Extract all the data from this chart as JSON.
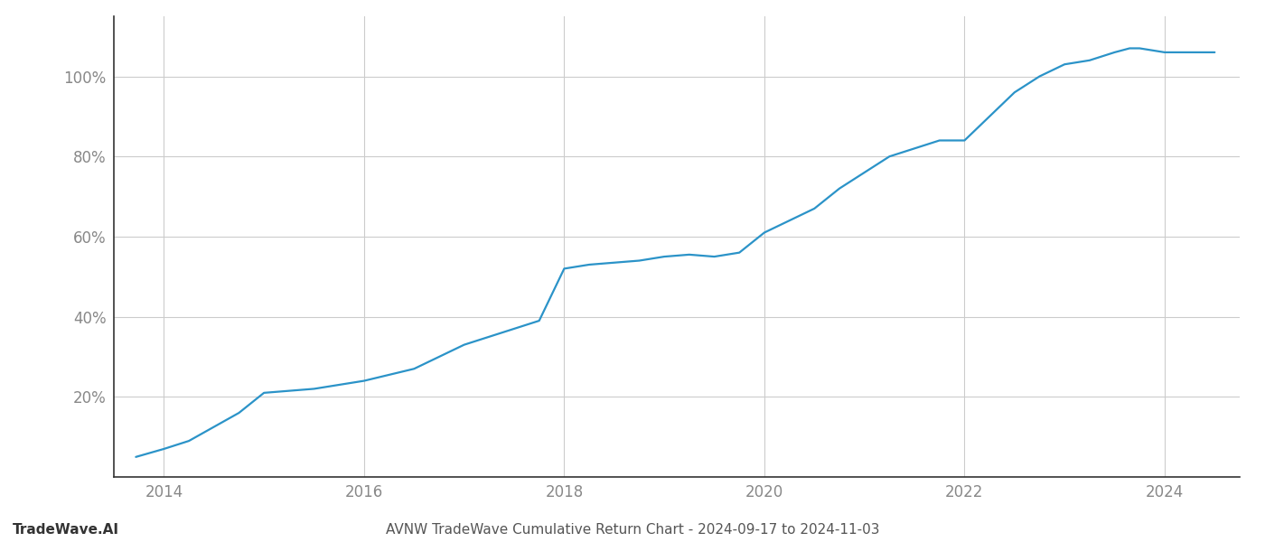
{
  "x_years": [
    2013.72,
    2014.0,
    2014.25,
    2014.75,
    2015.0,
    2015.25,
    2015.5,
    2016.0,
    2016.5,
    2017.0,
    2017.25,
    2017.5,
    2017.75,
    2018.0,
    2018.25,
    2018.5,
    2018.75,
    2019.0,
    2019.25,
    2019.5,
    2019.75,
    2020.0,
    2020.25,
    2020.5,
    2020.75,
    2021.0,
    2021.25,
    2021.5,
    2021.75,
    2022.0,
    2022.25,
    2022.5,
    2022.75,
    2023.0,
    2023.25,
    2023.5,
    2023.65,
    2023.75,
    2024.0,
    2024.3,
    2024.5
  ],
  "y_values": [
    5,
    7,
    9,
    16,
    21,
    21.5,
    22,
    24,
    27,
    33,
    35,
    37,
    39,
    52,
    53,
    53.5,
    54,
    55,
    55.5,
    55,
    56,
    61,
    64,
    67,
    72,
    76,
    80,
    82,
    84,
    84,
    90,
    96,
    100,
    103,
    104,
    106,
    107,
    107,
    106,
    106,
    106
  ],
  "line_color": "#2b93c8",
  "line_width": 1.6,
  "background_color": "#ffffff",
  "grid_color": "#cccccc",
  "title": "AVNW TradeWave Cumulative Return Chart - 2024-09-17 to 2024-11-03",
  "title_fontsize": 11,
  "title_color": "#555555",
  "watermark": "TradeWave.AI",
  "watermark_color": "#333333",
  "watermark_fontsize": 11,
  "xtick_labels": [
    "2014",
    "2016",
    "2018",
    "2020",
    "2022",
    "2024"
  ],
  "xtick_values": [
    2014,
    2016,
    2018,
    2020,
    2022,
    2024
  ],
  "ytick_labels": [
    "20%",
    "40%",
    "60%",
    "80%",
    "100%"
  ],
  "ytick_values": [
    20,
    40,
    60,
    80,
    100
  ],
  "xlim": [
    2013.5,
    2024.75
  ],
  "ylim": [
    0,
    115
  ]
}
